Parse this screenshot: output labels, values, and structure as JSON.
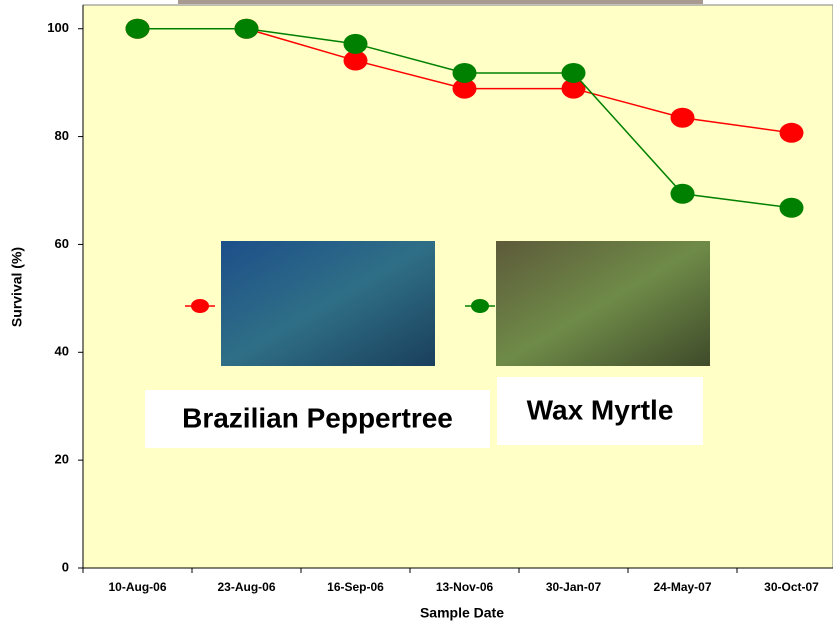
{
  "chart_data": {
    "type": "line",
    "x_label": "Sample Date",
    "y_label": "Survival (%)",
    "categories": [
      "10-Aug-06",
      "23-Aug-06",
      "16-Sep-06",
      "13-Nov-06",
      "30-Jan-07",
      "24-May-07",
      "30-Oct-07"
    ],
    "series": [
      {
        "name": "Brazilian Peppertree",
        "color": "#ff0000",
        "values": [
          100,
          100,
          94.1,
          88.9,
          88.9,
          83.5,
          80.7
        ]
      },
      {
        "name": "Wax Myrtle",
        "color": "#008000",
        "values": [
          100,
          100,
          97.2,
          91.8,
          91.8,
          69.4,
          66.8
        ]
      }
    ],
    "ylim": [
      0,
      104.4
    ],
    "yticks": [
      0,
      20,
      40,
      60,
      80,
      100
    ],
    "background": "#ffffc6"
  }
}
